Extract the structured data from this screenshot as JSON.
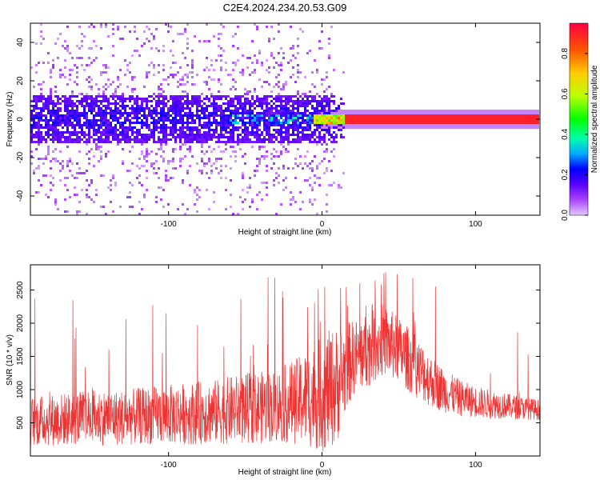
{
  "title": "C2E4.2024.234.20.53.G09",
  "chart_data": [
    {
      "type": "heatmap",
      "name": "spectrogram",
      "xlabel": "Height of straight line (km)",
      "ylabel": "Frequency (Hz)",
      "xlim": [
        -190,
        142
      ],
      "ylim": [
        -50,
        50
      ],
      "xticks": [
        -100,
        0,
        100
      ],
      "xtick_labels": [
        "-100",
        "0",
        "100"
      ],
      "yticks": [
        -40,
        -20,
        0,
        20,
        40
      ],
      "ytick_labels": [
        "-40",
        "-20",
        "0",
        "20",
        "40"
      ],
      "colorbar": {
        "label": "Normalized spectral amplitude",
        "range": [
          0,
          0.95
        ],
        "ticks": [
          0.0,
          0.2,
          0.4,
          0.6,
          0.8
        ],
        "tick_labels": [
          "0.0",
          "0.2",
          "0.4",
          "0.6",
          "0.8"
        ],
        "colormap": "gist_rainbow"
      },
      "features": {
        "dominant_frequency_hz": 0,
        "line_height_range_km": [
          0,
          142
        ],
        "line_amplitude": 0.9,
        "scatter_height_range_km": [
          -190,
          15
        ],
        "core_band_hz": [
          -12,
          12
        ]
      }
    },
    {
      "type": "line",
      "name": "snr",
      "xlabel": "Height of straight line (km)",
      "ylabel": "SNR (10 * v/v)",
      "xlim": [
        -190,
        142
      ],
      "ylim": [
        0,
        2880
      ],
      "xticks": [
        -100,
        0,
        100
      ],
      "xtick_labels": [
        "-100",
        "0",
        "100"
      ],
      "yticks": [
        500,
        1000,
        1500,
        2000,
        2500
      ],
      "ytick_labels": [
        "500",
        "1000",
        "1500",
        "2000",
        "2500"
      ],
      "color": "#ee3333",
      "series": [
        {
          "x": [
            -190,
            -170,
            -150,
            -130,
            -110,
            -90,
            -70,
            -50,
            -30,
            -15,
            -5,
            0,
            5,
            10,
            15,
            20,
            30,
            40,
            50,
            60,
            70,
            80,
            90,
            100,
            110,
            120,
            130,
            142
          ],
          "y_upper": [
            900,
            950,
            1000,
            1000,
            1050,
            1100,
            1150,
            1250,
            1300,
            1500,
            1700,
            1800,
            1900,
            1950,
            2000,
            2050,
            2150,
            2300,
            2100,
            1850,
            1550,
            1300,
            1150,
            1050,
            1000,
            950,
            900,
            850
          ],
          "y_lower": [
            150,
            150,
            160,
            160,
            170,
            170,
            180,
            180,
            200,
            180,
            100,
            60,
            100,
            200,
            600,
            900,
            1050,
            1200,
            1100,
            900,
            750,
            650,
            600,
            580,
            560,
            560,
            550,
            540
          ]
        }
      ]
    }
  ]
}
